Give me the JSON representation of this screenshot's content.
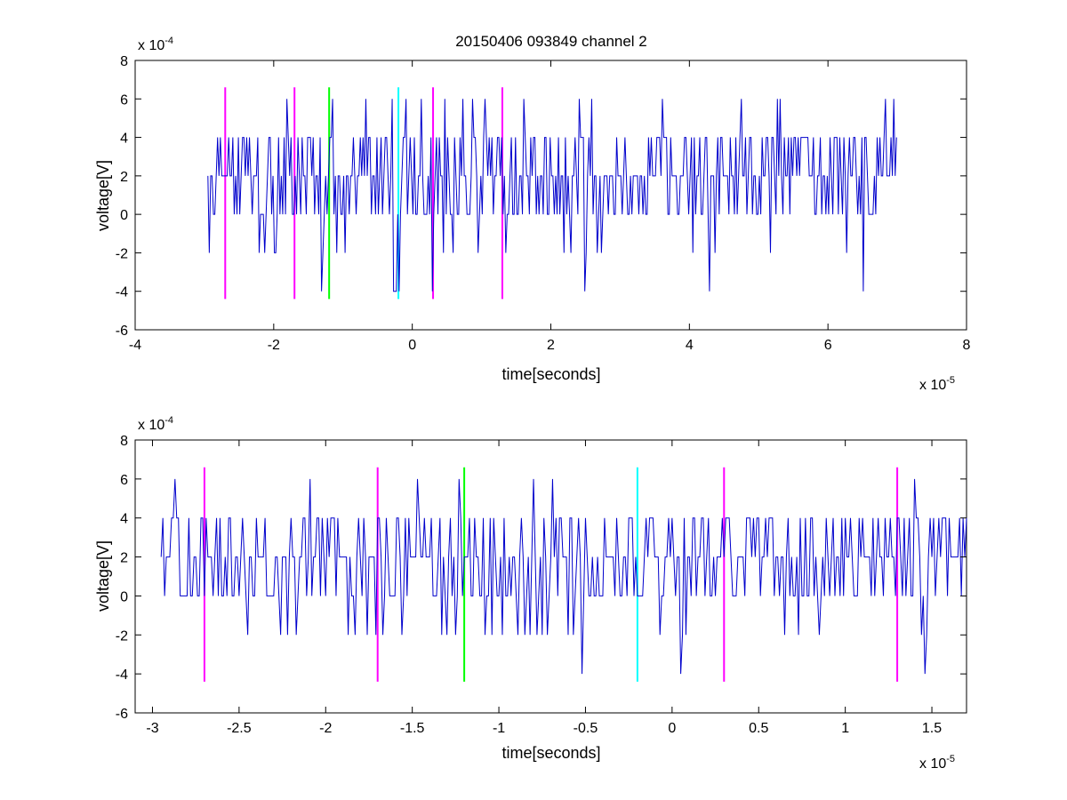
{
  "figure": {
    "title": "20150406 093849 channel 2"
  },
  "chart_data": [
    {
      "type": "line",
      "title": "20150406 093849 channel 2",
      "xlabel": "time[seconds]",
      "ylabel": "voltage[V]",
      "x_exponent_label": "x 10",
      "x_exponent_power": "-5",
      "y_exponent_label": "x 10",
      "y_exponent_power": "-4",
      "xlim": [
        -4,
        8
      ],
      "ylim": [
        -6,
        8
      ],
      "xticks": [
        -4,
        -2,
        0,
        2,
        4,
        6,
        8
      ],
      "xtick_labels": [
        "-4",
        "-2",
        "0",
        "2",
        "4",
        "6",
        "8"
      ],
      "yticks": [
        -6,
        -4,
        -2,
        0,
        2,
        4,
        6,
        8
      ],
      "ytick_labels": [
        "-6",
        "-4",
        "-2",
        "0",
        "2",
        "4",
        "6",
        "8"
      ],
      "grid": false,
      "signal": {
        "color": "#0000cc",
        "x_start": -2.95,
        "x_end": 7.0,
        "dt": 0.02,
        "levels": [
          0,
          2,
          4,
          6,
          -2,
          -4
        ],
        "weights": [
          0.24,
          0.36,
          0.28,
          0.04,
          0.06,
          0.02
        ],
        "seed": 20150406
      },
      "markers": [
        {
          "x": -2.7,
          "color": "#ff00ff",
          "y_range": [
            -4.4,
            6.6
          ]
        },
        {
          "x": -1.7,
          "color": "#ff00ff",
          "y_range": [
            -4.4,
            6.6
          ]
        },
        {
          "x": -1.2,
          "color": "#00ff00",
          "y_range": [
            -4.4,
            6.6
          ]
        },
        {
          "x": -0.2,
          "color": "#00ffff",
          "y_range": [
            -4.4,
            6.6
          ]
        },
        {
          "x": 0.3,
          "color": "#ff00ff",
          "y_range": [
            -4.4,
            6.6
          ]
        },
        {
          "x": 1.3,
          "color": "#ff00ff",
          "y_range": [
            -4.4,
            6.6
          ]
        }
      ]
    },
    {
      "type": "line",
      "title": "",
      "xlabel": "time[seconds]",
      "ylabel": "voltage[V]",
      "x_exponent_label": "x 10",
      "x_exponent_power": "-5",
      "y_exponent_label": "x 10",
      "y_exponent_power": "-4",
      "xlim": [
        -3.1,
        1.7
      ],
      "ylim": [
        -6,
        8
      ],
      "xticks": [
        -3,
        -2.5,
        -2,
        -1.5,
        -1,
        -0.5,
        0,
        0.5,
        1,
        1.5
      ],
      "xtick_labels": [
        "-3",
        "-2.5",
        "-2",
        "-1.5",
        "-1",
        "-0.5",
        "0",
        "0.5",
        "1",
        "1.5"
      ],
      "yticks": [
        -6,
        -4,
        -2,
        0,
        2,
        4,
        6,
        8
      ],
      "ytick_labels": [
        "-6",
        "-4",
        "-2",
        "0",
        "2",
        "4",
        "6",
        "8"
      ],
      "grid": false,
      "signal": {
        "color": "#0000cc",
        "x_start": -2.95,
        "x_end": 1.7,
        "dt": 0.01,
        "levels": [
          0,
          2,
          4,
          6,
          -2,
          -4
        ],
        "weights": [
          0.24,
          0.38,
          0.28,
          0.03,
          0.06,
          0.01
        ],
        "seed": 93849
      },
      "markers": [
        {
          "x": -2.7,
          "color": "#ff00ff",
          "y_range": [
            -4.4,
            6.6
          ]
        },
        {
          "x": -1.7,
          "color": "#ff00ff",
          "y_range": [
            -4.4,
            6.6
          ]
        },
        {
          "x": -1.2,
          "color": "#00ff00",
          "y_range": [
            -4.4,
            6.6
          ]
        },
        {
          "x": -0.2,
          "color": "#00ffff",
          "y_range": [
            -4.4,
            6.6
          ]
        },
        {
          "x": 0.3,
          "color": "#ff00ff",
          "y_range": [
            -4.4,
            6.6
          ]
        },
        {
          "x": 1.3,
          "color": "#ff00ff",
          "y_range": [
            -4.4,
            6.6
          ]
        }
      ]
    }
  ]
}
